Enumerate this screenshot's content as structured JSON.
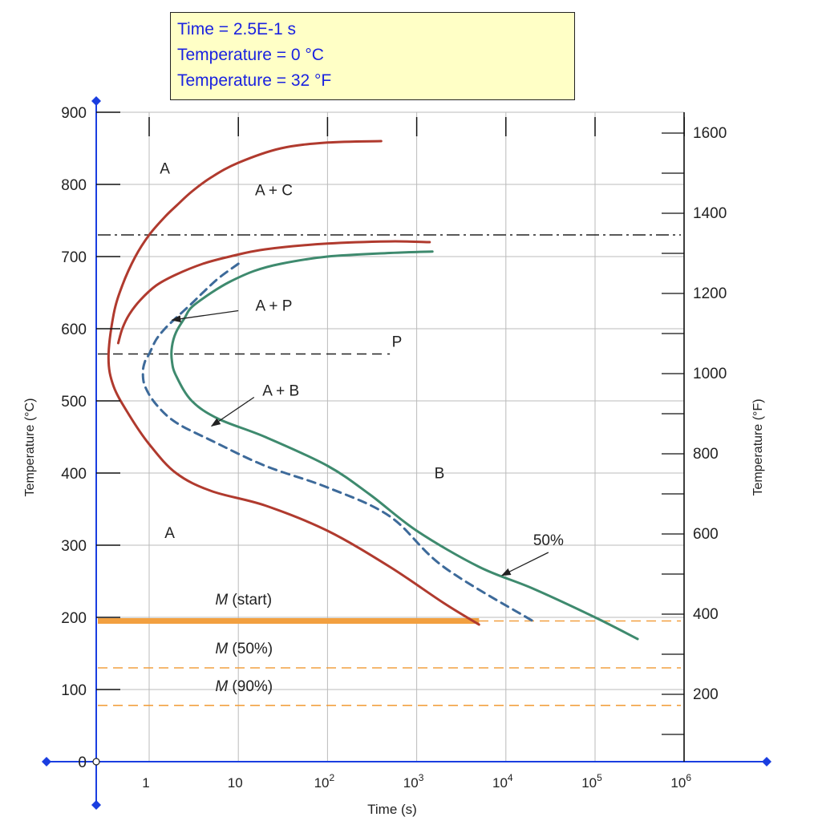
{
  "info_box": {
    "time": "Time = 2.5E-1 s",
    "temp_c": "Temperature = 0 °C",
    "temp_f": "Temperature = 32 °F"
  },
  "chart_data": {
    "type": "line",
    "title": "",
    "xlabel": "Time (s)",
    "ylabel": "Temperature (°C)",
    "y2label": "Temperature (°F)",
    "x_scale": "log",
    "xlim": [
      0.3,
      1000000
    ],
    "ylim": [
      0,
      900
    ],
    "y2lim": [
      32,
      1652
    ],
    "grid": true,
    "x_ticks": [
      {
        "value": 1,
        "label": "1"
      },
      {
        "value": 10,
        "label": "10"
      },
      {
        "value": 100,
        "label": "10",
        "sup": "2"
      },
      {
        "value": 1000,
        "label": "10",
        "sup": "3"
      },
      {
        "value": 10000,
        "label": "10",
        "sup": "4"
      },
      {
        "value": 100000,
        "label": "10",
        "sup": "5"
      },
      {
        "value": 1000000,
        "label": "10",
        "sup": "6"
      }
    ],
    "y_ticks": [
      {
        "value": 0,
        "label": "0"
      },
      {
        "value": 100,
        "label": "100"
      },
      {
        "value": 200,
        "label": "200"
      },
      {
        "value": 300,
        "label": "300"
      },
      {
        "value": 400,
        "label": "400"
      },
      {
        "value": 500,
        "label": "500"
      },
      {
        "value": 600,
        "label": "600"
      },
      {
        "value": 700,
        "label": "700"
      },
      {
        "value": 800,
        "label": "800"
      },
      {
        "value": 900,
        "label": "900"
      }
    ],
    "y2_ticks": [
      {
        "value": 200,
        "label": "200"
      },
      {
        "value": 400,
        "label": "400"
      },
      {
        "value": 600,
        "label": "600"
      },
      {
        "value": 800,
        "label": "800"
      },
      {
        "value": 1000,
        "label": "1000"
      },
      {
        "value": 1200,
        "label": "1200"
      },
      {
        "value": 1400,
        "label": "1400"
      },
      {
        "value": 1600,
        "label": "1600"
      }
    ],
    "y2_minor_ticks": [
      100,
      300,
      500,
      700,
      900,
      1100,
      1300,
      1500
    ],
    "colors": {
      "red": "#b03a2e",
      "green": "#3e8a6e",
      "blue": "#3d6a9a",
      "orange": "#f2a040",
      "axis": "#1a3ee0",
      "grid": "#bbbbbb",
      "text": "#222222"
    },
    "series": [
      {
        "name": "",
        "color": "#b03a2e",
        "dash": "none",
        "x": [
          400,
          100,
          30,
          10,
          5,
          3,
          2,
          1.5,
          1,
          0.7,
          0.5,
          0.4,
          0.35,
          0.4,
          0.6,
          1,
          2,
          5,
          20,
          100,
          500,
          2000,
          5000
        ],
        "y": [
          860,
          858,
          850,
          830,
          810,
          790,
          770,
          755,
          730,
          700,
          660,
          620,
          560,
          520,
          480,
          440,
          400,
          375,
          355,
          320,
          270,
          220,
          190
        ]
      },
      {
        "name": "",
        "color": "#b03a2e",
        "dash": "none",
        "x": [
          1400,
          500,
          100,
          20,
          8,
          4,
          2,
          1.2,
          0.8,
          0.6,
          0.5,
          0.45
        ],
        "y": [
          720,
          721,
          718,
          710,
          700,
          690,
          675,
          660,
          640,
          620,
          600,
          580
        ]
      },
      {
        "name": "",
        "color": "#3d6a9a",
        "dash": "10,7",
        "x": [
          10,
          6,
          4,
          3,
          2,
          1.5,
          1.2,
          1,
          0.9,
          0.85,
          0.9,
          1.2,
          2,
          5,
          20,
          100,
          500,
          2000,
          20000
        ],
        "y": [
          690,
          670,
          650,
          635,
          615,
          600,
          585,
          565,
          555,
          540,
          520,
          495,
          470,
          445,
          410,
          380,
          340,
          270,
          195
        ]
      },
      {
        "name": "",
        "color": "#3e8a6e",
        "dash": "none",
        "x": [
          1500,
          500,
          100,
          30,
          15,
          8,
          5,
          3,
          2.5,
          2,
          1.8,
          1.8,
          2,
          3,
          6,
          20,
          100,
          300,
          1000,
          5000,
          20000,
          100000,
          300000
        ],
        "y": [
          707,
          705,
          700,
          690,
          680,
          665,
          650,
          630,
          615,
          595,
          575,
          555,
          535,
          500,
          475,
          450,
          410,
          370,
          320,
          270,
          240,
          200,
          170
        ]
      }
    ],
    "reference_lines": [
      {
        "kind": "dashdot",
        "y": 730,
        "color": "#222222"
      },
      {
        "kind": "dashed",
        "y": 565,
        "x_end": 500,
        "color": "#222222"
      },
      {
        "kind": "solid_thick",
        "y": 195,
        "x_end": 5000,
        "color": "#f2a040"
      },
      {
        "kind": "dashed",
        "y": 195,
        "color": "#f2a040"
      },
      {
        "kind": "dashed",
        "y": 130,
        "color": "#f2a040"
      },
      {
        "kind": "dashed",
        "y": 78,
        "color": "#f2a040"
      }
    ],
    "annotations": [
      {
        "text": "A",
        "x": 1.5,
        "y": 815,
        "italic": false
      },
      {
        "text": "A + C",
        "x": 25,
        "y": 785,
        "italic": false
      },
      {
        "text": "A + P",
        "x": 25,
        "y": 625,
        "italic": false
      },
      {
        "text": "P",
        "x": 600,
        "y": 575,
        "italic": false
      },
      {
        "text": "A + B",
        "x": 30,
        "y": 507,
        "italic": false
      },
      {
        "text": "B",
        "x": 1800,
        "y": 393,
        "italic": false
      },
      {
        "text": "A",
        "x": 1.7,
        "y": 310,
        "italic": false
      },
      {
        "text": "50%",
        "x": 30000,
        "y": 300,
        "italic": false
      },
      {
        "text": "M (start)",
        "x": 5.5,
        "y": 218,
        "italic": true
      },
      {
        "text": "M (50%)",
        "x": 5.5,
        "y": 150,
        "italic": true
      },
      {
        "text": "M (90%)",
        "x": 5.5,
        "y": 98,
        "italic": true
      }
    ],
    "arrows": [
      {
        "from": [
          10,
          625
        ],
        "to": [
          1.8,
          612
        ]
      },
      {
        "from": [
          15,
          505
        ],
        "to": [
          5,
          465
        ]
      },
      {
        "from": [
          30000,
          290
        ],
        "to": [
          9000,
          258
        ]
      }
    ]
  }
}
